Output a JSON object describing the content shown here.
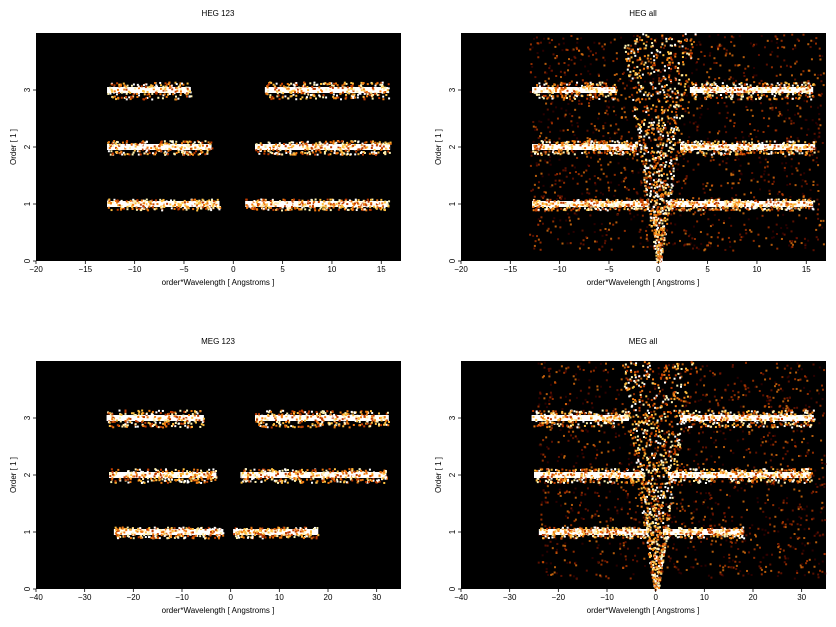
{
  "colors": {
    "background": "#000000",
    "colormap": [
      "#3a0000",
      "#7a1500",
      "#c03c00",
      "#f07a10",
      "#ffc040",
      "#fff2b0",
      "#ffffff"
    ]
  },
  "chart_data": [
    {
      "type": "heatmap",
      "id": "heg123",
      "title": "HEG 123",
      "xlabel": "order*Wavelength [ Angstroms ]",
      "ylabel": "Order [ 1 ]",
      "xlim": [
        -20,
        17
      ],
      "ylim": [
        0,
        4
      ],
      "xticks": [
        -20,
        -15,
        -10,
        -5,
        0,
        5,
        10,
        15
      ],
      "yticks": [
        0,
        1,
        2,
        3
      ],
      "bands": [
        {
          "order": 1,
          "segments": [
            [
              -12.8,
              -1.4
            ],
            [
              1.2,
              15.7
            ]
          ]
        },
        {
          "order": 2,
          "segments": [
            [
              -12.8,
              -2.2
            ],
            [
              2.2,
              15.9
            ]
          ]
        },
        {
          "order": 3,
          "segments": [
            [
              -12.8,
              -4.3
            ],
            [
              3.2,
              15.7
            ]
          ]
        }
      ],
      "zeroth_order": false,
      "background_noise": 0
    },
    {
      "type": "heatmap",
      "id": "hegall",
      "title": "HEG all",
      "xlabel": "order*Wavelength [ Angstroms ]",
      "ylabel": "Order [ 1 ]",
      "xlim": [
        -20,
        17
      ],
      "ylim": [
        0,
        4
      ],
      "xticks": [
        -20,
        -15,
        -10,
        -5,
        0,
        5,
        10,
        15
      ],
      "yticks": [
        0,
        1,
        2,
        3
      ],
      "bands": [
        {
          "order": 1,
          "segments": [
            [
              -12.8,
              -1.0
            ],
            [
              1.0,
              15.7
            ]
          ]
        },
        {
          "order": 2,
          "segments": [
            [
              -12.8,
              -2.2
            ],
            [
              2.2,
              15.9
            ]
          ]
        },
        {
          "order": 3,
          "segments": [
            [
              -12.8,
              -4.3
            ],
            [
              3.2,
              15.7
            ]
          ]
        }
      ],
      "zeroth_order": true,
      "background_noise": 1
    },
    {
      "type": "heatmap",
      "id": "meg123",
      "title": "MEG 123",
      "xlabel": "order*Wavelength [ Angstroms ]",
      "ylabel": "Order [ 1 ]",
      "xlim": [
        -40,
        35
      ],
      "ylim": [
        0,
        4
      ],
      "xticks": [
        -40,
        -30,
        -20,
        -10,
        0,
        10,
        20,
        30
      ],
      "yticks": [
        0,
        1,
        2,
        3
      ],
      "bands": [
        {
          "order": 1,
          "segments": [
            [
              -24.0,
              -1.5
            ],
            [
              0.5,
              18.0
            ]
          ]
        },
        {
          "order": 2,
          "segments": [
            [
              -25.0,
              -3.0
            ],
            [
              2.0,
              32.0
            ]
          ]
        },
        {
          "order": 3,
          "segments": [
            [
              -25.5,
              -5.5
            ],
            [
              5.0,
              32.5
            ]
          ]
        }
      ],
      "zeroth_order": false,
      "background_noise": 0
    },
    {
      "type": "heatmap",
      "id": "megall",
      "title": "MEG all",
      "xlabel": "order*Wavelength [ Angstroms ]",
      "ylabel": "Order [ 1 ]",
      "xlim": [
        -40,
        35
      ],
      "ylim": [
        0,
        4
      ],
      "xticks": [
        -40,
        -30,
        -20,
        -10,
        0,
        10,
        20,
        30
      ],
      "yticks": [
        0,
        1,
        2,
        3
      ],
      "bands": [
        {
          "order": 1,
          "segments": [
            [
              -24.0,
              -1.5
            ],
            [
              1.5,
              18.0
            ]
          ]
        },
        {
          "order": 2,
          "segments": [
            [
              -25.0,
              -2.5
            ],
            [
              2.5,
              32.0
            ]
          ]
        },
        {
          "order": 3,
          "segments": [
            [
              -25.5,
              -5.5
            ],
            [
              5.0,
              32.5
            ]
          ]
        }
      ],
      "zeroth_order": true,
      "background_noise": 1
    }
  ]
}
